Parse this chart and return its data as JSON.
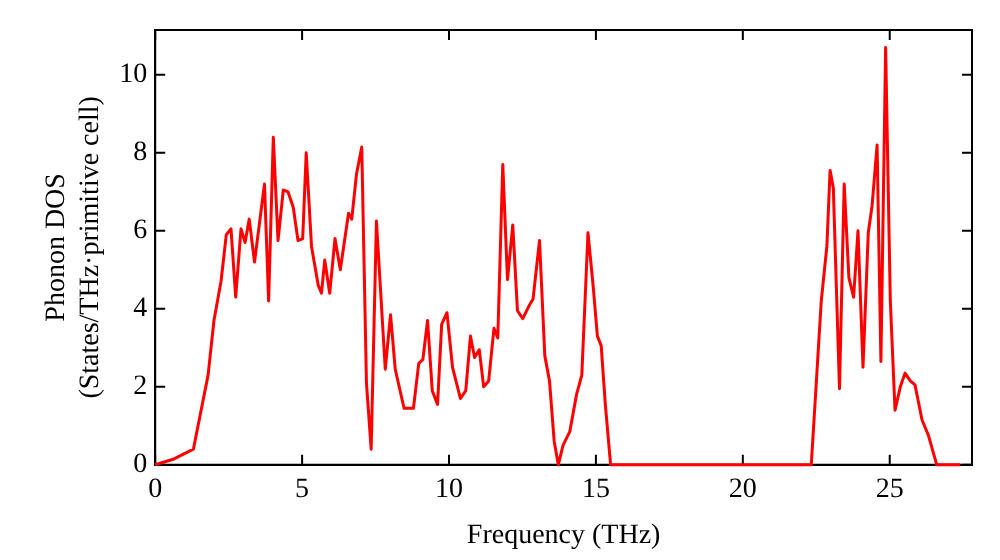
{
  "chart_data": {
    "type": "line",
    "xlabel": "Frequency (THz)",
    "ylabel": "Phonon DOS\n(States/THz·primitive cell)",
    "xlim": [
      0,
      27.8
    ],
    "ylim": [
      0,
      11.15
    ],
    "xticks": [
      0,
      5,
      10,
      15,
      20,
      25
    ],
    "yticks": [
      0,
      2,
      4,
      6,
      8,
      10
    ],
    "grid": false,
    "legend": false,
    "marker": "none",
    "line_style": "solid",
    "series": [
      {
        "color": "#ff0000",
        "x": [
          0,
          0.64,
          1.3,
          1.8,
          2.0,
          2.24,
          2.42,
          2.58,
          2.74,
          2.92,
          3.06,
          3.2,
          3.38,
          3.72,
          3.86,
          4.02,
          4.18,
          4.36,
          4.52,
          4.7,
          4.86,
          5.02,
          5.14,
          5.32,
          5.55,
          5.66,
          5.77,
          5.94,
          6.12,
          6.3,
          6.58,
          6.69,
          6.85,
          7.03,
          7.19,
          7.35,
          7.53,
          7.83,
          8.01,
          8.17,
          8.47,
          8.79,
          8.97,
          9.11,
          9.27,
          9.43,
          9.61,
          9.75,
          9.93,
          10.12,
          10.39,
          10.57,
          10.73,
          10.87,
          11.03,
          11.18,
          11.35,
          11.53,
          11.66,
          11.83,
          11.99,
          12.17,
          12.33,
          12.51,
          12.74,
          12.86,
          13.08,
          13.26,
          13.42,
          13.58,
          13.72,
          13.88,
          14.11,
          14.34,
          14.52,
          14.73,
          14.91,
          15.05,
          15.18,
          15.32,
          15.5,
          22.33,
          22.67,
          22.86,
          22.97,
          23.08,
          23.29,
          23.45,
          23.61,
          23.77,
          23.92,
          24.09,
          24.27,
          24.4,
          24.57,
          24.7,
          24.86,
          25.02,
          25.18,
          25.36,
          25.52,
          25.7,
          25.86,
          26.1,
          26.32,
          26.6,
          27.4
        ],
        "values": [
          0,
          0.15,
          0.4,
          2.3,
          3.7,
          4.7,
          5.9,
          6.05,
          4.3,
          6.05,
          5.7,
          6.3,
          5.2,
          7.2,
          4.2,
          8.4,
          5.75,
          7.05,
          7.0,
          6.6,
          5.75,
          5.8,
          8.0,
          5.6,
          4.6,
          4.4,
          5.25,
          4.4,
          5.8,
          5.0,
          6.45,
          6.3,
          7.45,
          8.15,
          2.1,
          0.4,
          6.25,
          2.45,
          3.85,
          2.45,
          1.45,
          1.45,
          2.6,
          2.7,
          3.7,
          1.9,
          1.55,
          3.6,
          3.9,
          2.5,
          1.7,
          1.9,
          3.3,
          2.75,
          2.95,
          2.0,
          2.15,
          3.5,
          3.25,
          7.7,
          4.75,
          6.15,
          3.95,
          3.75,
          4.1,
          4.25,
          5.75,
          2.8,
          2.15,
          0.6,
          0,
          0.5,
          0.85,
          1.8,
          2.3,
          5.95,
          4.55,
          3.3,
          3.05,
          1.55,
          0,
          0,
          4.2,
          5.6,
          7.55,
          7.1,
          1.95,
          7.2,
          4.8,
          4.3,
          6.0,
          2.5,
          5.95,
          6.65,
          8.2,
          2.65,
          10.7,
          4.2,
          1.4,
          2.0,
          2.35,
          2.15,
          2.05,
          1.15,
          0.75,
          0,
          0
        ]
      }
    ]
  }
}
